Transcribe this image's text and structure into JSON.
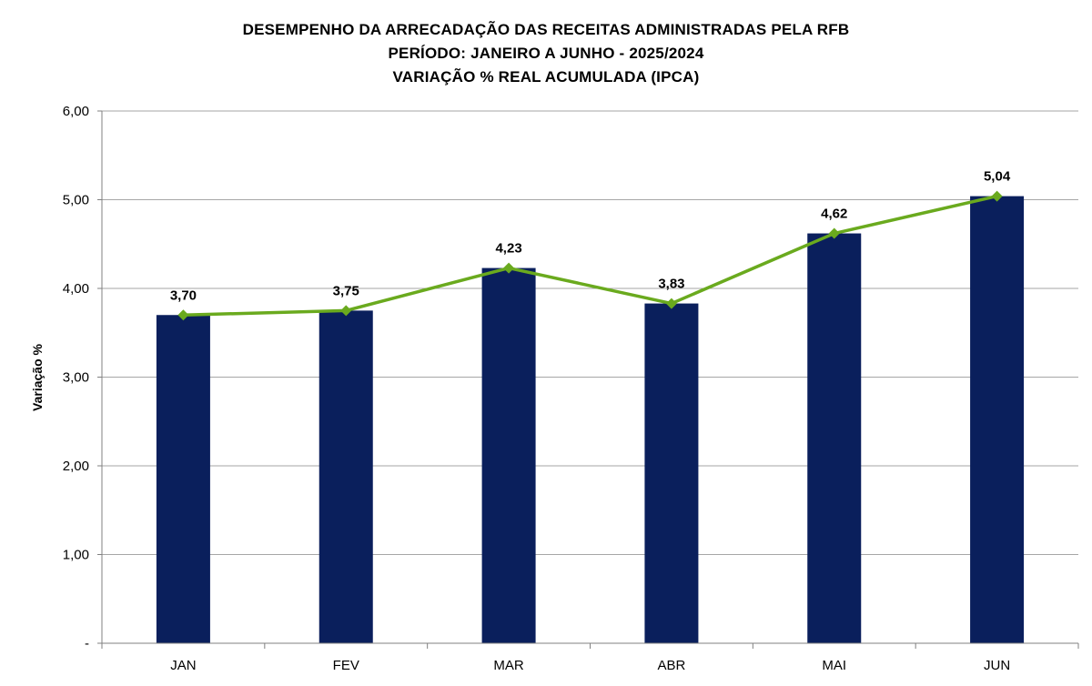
{
  "chart_data": {
    "type": "bar",
    "title_lines": [
      "DESEMPENHO DA ARRECADAÇÃO DAS RECEITAS ADMINISTRADAS PELA RFB",
      "PERÍODO: JANEIRO A JUNHO - 2025/2024",
      "VARIAÇÃO % REAL ACUMULADA (IPCA)"
    ],
    "ylabel": "Variação %",
    "xlabel": "",
    "categories": [
      "JAN",
      "FEV",
      "MAR",
      "ABR",
      "MAI",
      "JUN"
    ],
    "series": [
      {
        "type": "bar",
        "values": [
          3.7,
          3.75,
          4.23,
          3.83,
          4.62,
          5.04
        ]
      },
      {
        "type": "line",
        "values": [
          3.7,
          3.75,
          4.23,
          3.83,
          4.62,
          5.04
        ]
      }
    ],
    "data_labels": [
      "3,70",
      "3,75",
      "4,23",
      "3,83",
      "4,62",
      "5,04"
    ],
    "ylim": [
      0,
      6
    ],
    "yticks": [
      {
        "value": 0,
        "label": "-"
      },
      {
        "value": 1,
        "label": "1,00"
      },
      {
        "value": 2,
        "label": "2,00"
      },
      {
        "value": 3,
        "label": "3,00"
      },
      {
        "value": 4,
        "label": "4,00"
      },
      {
        "value": 5,
        "label": "5,00"
      },
      {
        "value": 6,
        "label": "6,00"
      }
    ],
    "grid": true,
    "legend": "none",
    "colors": {
      "bar": "#0a1f5c",
      "line": "#6aaa1e",
      "grid": "#a6a6a6",
      "axis": "#808080"
    }
  }
}
